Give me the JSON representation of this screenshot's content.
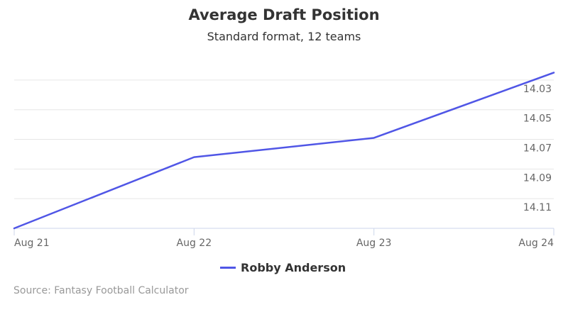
{
  "chart_data": {
    "type": "line",
    "title": "Average Draft Position",
    "subtitle": "Standard format, 12 teams",
    "categories": [
      "Aug 21",
      "Aug 22",
      "Aug 23",
      "Aug 24"
    ],
    "y_ticks": [
      "14.03",
      "14.05",
      "14.07",
      "14.09",
      "14.11"
    ],
    "ylim": [
      14.01,
      14.12
    ],
    "y_reversed": true,
    "y_axis_side": "right",
    "grid": true,
    "legend_position": "bottom-center",
    "series": [
      {
        "name": "Robby Anderson",
        "color": "#5056e6",
        "values": [
          14.12,
          14.072,
          14.059,
          14.015
        ]
      }
    ]
  },
  "credits": "Source: Fantasy Football Calculator"
}
